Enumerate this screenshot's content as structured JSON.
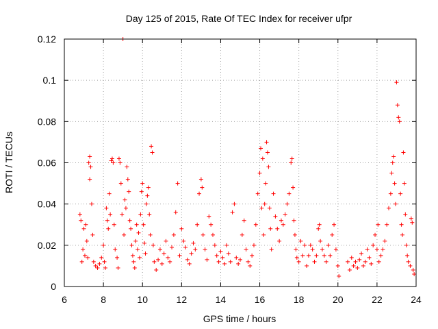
{
  "chart_data": {
    "type": "scatter",
    "title": "Day 125 of 2015, Rate Of TEC Index for receiver ufpr",
    "xlabel": "GPS time / hours",
    "ylabel": "ROTI / TECUs",
    "xlim": [
      6,
      24
    ],
    "ylim": [
      0,
      0.12
    ],
    "xticks": [
      6,
      8,
      10,
      12,
      14,
      16,
      18,
      20,
      22,
      24
    ],
    "yticks": [
      0,
      0.02,
      0.04,
      0.06,
      0.08,
      0.1,
      0.12
    ],
    "ytick_labels": [
      "0",
      "0.02",
      "0.04",
      "0.06",
      "0.08",
      "0.1",
      "0.12"
    ],
    "grid": true,
    "marker": "+",
    "color": "#ff0000",
    "series": [
      {
        "name": "ROTI",
        "points": [
          [
            6.8,
            0.035
          ],
          [
            6.85,
            0.032
          ],
          [
            6.9,
            0.012
          ],
          [
            6.95,
            0.018
          ],
          [
            7.0,
            0.028
          ],
          [
            7.05,
            0.015
          ],
          [
            7.1,
            0.03
          ],
          [
            7.15,
            0.022
          ],
          [
            7.2,
            0.014
          ],
          [
            7.25,
            0.06
          ],
          [
            7.3,
            0.063
          ],
          [
            7.35,
            0.058
          ],
          [
            7.3,
            0.052
          ],
          [
            7.4,
            0.04
          ],
          [
            7.45,
            0.025
          ],
          [
            7.5,
            0.012
          ],
          [
            7.6,
            0.01
          ],
          [
            7.7,
            0.009
          ],
          [
            7.8,
            0.011
          ],
          [
            7.9,
            0.014
          ],
          [
            8.0,
            0.02
          ],
          [
            8.05,
            0.012
          ],
          [
            8.1,
            0.009
          ],
          [
            8.15,
            0.038
          ],
          [
            8.2,
            0.032
          ],
          [
            8.25,
            0.028
          ],
          [
            8.3,
            0.045
          ],
          [
            8.35,
            0.035
          ],
          [
            8.4,
            0.061
          ],
          [
            8.45,
            0.062
          ],
          [
            8.5,
            0.06
          ],
          [
            8.55,
            0.03
          ],
          [
            8.6,
            0.018
          ],
          [
            8.7,
            0.014
          ],
          [
            8.75,
            0.009
          ],
          [
            8.8,
            0.062
          ],
          [
            8.85,
            0.06
          ],
          [
            8.9,
            0.05
          ],
          [
            8.95,
            0.035
          ],
          [
            9.0,
            0.12
          ],
          [
            9.05,
            0.025
          ],
          [
            9.1,
            0.042
          ],
          [
            9.15,
            0.038
          ],
          [
            9.2,
            0.058
          ],
          [
            9.25,
            0.052
          ],
          [
            9.3,
            0.046
          ],
          [
            9.35,
            0.032
          ],
          [
            9.4,
            0.028
          ],
          [
            9.45,
            0.02
          ],
          [
            9.5,
            0.015
          ],
          [
            9.55,
            0.012
          ],
          [
            9.6,
            0.009
          ],
          [
            9.65,
            0.022
          ],
          [
            9.7,
            0.03
          ],
          [
            9.75,
            0.018
          ],
          [
            9.8,
            0.026
          ],
          [
            9.85,
            0.014
          ],
          [
            9.9,
            0.035
          ],
          [
            9.95,
            0.046
          ],
          [
            10.0,
            0.05
          ],
          [
            10.05,
            0.03
          ],
          [
            10.1,
            0.021
          ],
          [
            10.15,
            0.016
          ],
          [
            10.2,
            0.04
          ],
          [
            10.25,
            0.044
          ],
          [
            10.3,
            0.048
          ],
          [
            10.35,
            0.035
          ],
          [
            10.4,
            0.025
          ],
          [
            10.45,
            0.068
          ],
          [
            10.5,
            0.065
          ],
          [
            10.55,
            0.02
          ],
          [
            10.6,
            0.012
          ],
          [
            10.7,
            0.008
          ],
          [
            10.8,
            0.013
          ],
          [
            10.9,
            0.018
          ],
          [
            11.0,
            0.011
          ],
          [
            11.1,
            0.016
          ],
          [
            11.2,
            0.022
          ],
          [
            11.3,
            0.014
          ],
          [
            11.4,
            0.012
          ],
          [
            11.5,
            0.019
          ],
          [
            11.6,
            0.025
          ],
          [
            11.7,
            0.036
          ],
          [
            11.8,
            0.05
          ],
          [
            11.9,
            0.015
          ],
          [
            12.0,
            0.028
          ],
          [
            12.1,
            0.022
          ],
          [
            12.2,
            0.019
          ],
          [
            12.3,
            0.013
          ],
          [
            12.4,
            0.011
          ],
          [
            12.5,
            0.016
          ],
          [
            12.6,
            0.021
          ],
          [
            12.7,
            0.018
          ],
          [
            12.8,
            0.03
          ],
          [
            12.9,
            0.045
          ],
          [
            13.0,
            0.052
          ],
          [
            13.05,
            0.048
          ],
          [
            13.1,
            0.025
          ],
          [
            13.2,
            0.018
          ],
          [
            13.3,
            0.013
          ],
          [
            13.4,
            0.034
          ],
          [
            13.5,
            0.03
          ],
          [
            13.6,
            0.025
          ],
          [
            13.7,
            0.02
          ],
          [
            13.8,
            0.015
          ],
          [
            13.9,
            0.012
          ],
          [
            14.0,
            0.017
          ],
          [
            14.1,
            0.014
          ],
          [
            14.2,
            0.011
          ],
          [
            14.3,
            0.02
          ],
          [
            14.4,
            0.016
          ],
          [
            14.5,
            0.012
          ],
          [
            14.6,
            0.036
          ],
          [
            14.7,
            0.04
          ],
          [
            14.8,
            0.014
          ],
          [
            14.9,
            0.011
          ],
          [
            15.0,
            0.013
          ],
          [
            15.1,
            0.025
          ],
          [
            15.2,
            0.032
          ],
          [
            15.3,
            0.018
          ],
          [
            15.4,
            0.012
          ],
          [
            15.5,
            0.01
          ],
          [
            15.6,
            0.015
          ],
          [
            15.7,
            0.02
          ],
          [
            15.8,
            0.03
          ],
          [
            15.9,
            0.045
          ],
          [
            16.0,
            0.055
          ],
          [
            16.05,
            0.067
          ],
          [
            16.1,
            0.038
          ],
          [
            16.15,
            0.062
          ],
          [
            16.2,
            0.025
          ],
          [
            16.25,
            0.04
          ],
          [
            16.3,
            0.05
          ],
          [
            16.35,
            0.07
          ],
          [
            16.4,
            0.065
          ],
          [
            16.45,
            0.058
          ],
          [
            16.5,
            0.038
          ],
          [
            16.55,
            0.028
          ],
          [
            16.6,
            0.018
          ],
          [
            16.7,
            0.045
          ],
          [
            16.8,
            0.034
          ],
          [
            16.9,
            0.028
          ],
          [
            17.0,
            0.022
          ],
          [
            17.1,
            0.032
          ],
          [
            17.2,
            0.03
          ],
          [
            17.3,
            0.035
          ],
          [
            17.4,
            0.04
          ],
          [
            17.5,
            0.045
          ],
          [
            17.6,
            0.06
          ],
          [
            17.65,
            0.062
          ],
          [
            17.7,
            0.048
          ],
          [
            17.75,
            0.032
          ],
          [
            17.8,
            0.025
          ],
          [
            17.85,
            0.018
          ],
          [
            17.9,
            0.014
          ],
          [
            18.0,
            0.012
          ],
          [
            18.1,
            0.022
          ],
          [
            18.2,
            0.015
          ],
          [
            18.3,
            0.02
          ],
          [
            18.4,
            0.01
          ],
          [
            18.5,
            0.015
          ],
          [
            18.6,
            0.02
          ],
          [
            18.7,
            0.018
          ],
          [
            18.8,
            0.012
          ],
          [
            18.9,
            0.015
          ],
          [
            19.0,
            0.028
          ],
          [
            19.05,
            0.03
          ],
          [
            19.1,
            0.022
          ],
          [
            19.2,
            0.018
          ],
          [
            19.3,
            0.015
          ],
          [
            19.4,
            0.012
          ],
          [
            19.5,
            0.02
          ],
          [
            19.6,
            0.015
          ],
          [
            19.7,
            0.025
          ],
          [
            19.8,
            0.03
          ],
          [
            19.9,
            0.018
          ],
          [
            20.0,
            0.01
          ],
          [
            20.05,
            0.005
          ],
          [
            20.5,
            0.012
          ],
          [
            20.6,
            0.008
          ],
          [
            20.7,
            0.014
          ],
          [
            20.8,
            0.01
          ],
          [
            20.9,
            0.012
          ],
          [
            21.0,
            0.009
          ],
          [
            21.1,
            0.013
          ],
          [
            21.2,
            0.016
          ],
          [
            21.3,
            0.01
          ],
          [
            21.4,
            0.012
          ],
          [
            21.5,
            0.018
          ],
          [
            21.6,
            0.014
          ],
          [
            21.7,
            0.011
          ],
          [
            21.8,
            0.02
          ],
          [
            21.9,
            0.025
          ],
          [
            22.0,
            0.018
          ],
          [
            22.05,
            0.03
          ],
          [
            22.1,
            0.012
          ],
          [
            22.2,
            0.015
          ],
          [
            22.3,
            0.018
          ],
          [
            22.4,
            0.022
          ],
          [
            22.5,
            0.03
          ],
          [
            22.6,
            0.038
          ],
          [
            22.7,
            0.045
          ],
          [
            22.75,
            0.055
          ],
          [
            22.8,
            0.06
          ],
          [
            22.85,
            0.063
          ],
          [
            22.9,
            0.05
          ],
          [
            22.95,
            0.04
          ],
          [
            23.0,
            0.099
          ],
          [
            23.05,
            0.088
          ],
          [
            23.1,
            0.082
          ],
          [
            23.15,
            0.08
          ],
          [
            23.2,
            0.045
          ],
          [
            23.25,
            0.03
          ],
          [
            23.3,
            0.025
          ],
          [
            23.35,
            0.065
          ],
          [
            23.4,
            0.05
          ],
          [
            23.45,
            0.035
          ],
          [
            23.5,
            0.02
          ],
          [
            23.55,
            0.015
          ],
          [
            23.6,
            0.012
          ],
          [
            23.7,
            0.01
          ],
          [
            23.75,
            0.033
          ],
          [
            23.8,
            0.031
          ],
          [
            23.85,
            0.008
          ],
          [
            23.9,
            0.006
          ]
        ]
      }
    ]
  }
}
